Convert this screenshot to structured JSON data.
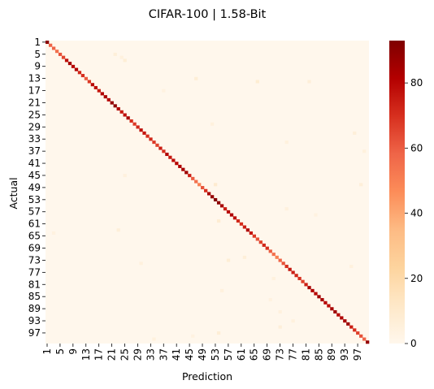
{
  "chart_data": {
    "type": "heatmap",
    "title": "CIFAR-100 | 1.58-Bit",
    "xlabel": "Prediction",
    "ylabel": "Actual",
    "n_classes": 100,
    "x_tick_labels": [
      "1",
      "5",
      "9",
      "13",
      "17",
      "21",
      "25",
      "29",
      "33",
      "37",
      "41",
      "45",
      "49",
      "53",
      "57",
      "61",
      "65",
      "69",
      "73",
      "77",
      "81",
      "85",
      "89",
      "93",
      "97"
    ],
    "y_tick_labels": [
      "1",
      "5",
      "9",
      "13",
      "17",
      "21",
      "25",
      "29",
      "33",
      "37",
      "41",
      "45",
      "49",
      "53",
      "57",
      "61",
      "65",
      "69",
      "73",
      "77",
      "81",
      "85",
      "89",
      "93",
      "97"
    ],
    "diagonal_values": [
      90,
      58,
      58,
      55,
      62,
      65,
      78,
      85,
      80,
      82,
      72,
      70,
      60,
      68,
      80,
      78,
      75,
      82,
      84,
      80,
      88,
      90,
      82,
      75,
      78,
      84,
      70,
      68,
      72,
      78,
      76,
      70,
      72,
      68,
      66,
      74,
      70,
      82,
      75,
      78,
      80,
      82,
      84,
      86,
      74,
      60,
      55,
      50,
      62,
      70,
      84,
      88,
      92,
      90,
      84,
      74,
      80,
      82,
      78,
      72,
      70,
      74,
      82,
      76,
      68,
      62,
      66,
      72,
      70,
      60,
      55,
      50,
      58,
      62,
      70,
      76,
      74,
      72,
      70,
      66,
      74,
      84,
      82,
      80,
      86,
      84,
      80,
      78,
      84,
      86,
      80,
      82,
      84,
      86,
      74,
      70,
      66,
      62,
      58,
      88
    ],
    "off_diagonal_values": [
      {
        "actual": 5,
        "prediction": 22,
        "value": 6
      },
      {
        "actual": 6,
        "prediction": 24,
        "value": 5
      },
      {
        "actual": 7,
        "prediction": 25,
        "value": 7
      },
      {
        "actual": 13,
        "prediction": 47,
        "value": 7
      },
      {
        "actual": 14,
        "prediction": 66,
        "value": 8
      },
      {
        "actual": 14,
        "prediction": 82,
        "value": 6
      },
      {
        "actual": 17,
        "prediction": 37,
        "value": 4
      },
      {
        "actual": 28,
        "prediction": 52,
        "value": 5
      },
      {
        "actual": 31,
        "prediction": 96,
        "value": 6
      },
      {
        "actual": 34,
        "prediction": 75,
        "value": 5
      },
      {
        "actual": 37,
        "prediction": 99,
        "value": 5
      },
      {
        "actual": 45,
        "prediction": 25,
        "value": 5
      },
      {
        "actual": 48,
        "prediction": 53,
        "value": 9
      },
      {
        "actual": 48,
        "prediction": 98,
        "value": 6
      },
      {
        "actual": 56,
        "prediction": 75,
        "value": 5
      },
      {
        "actual": 58,
        "prediction": 84,
        "value": 4
      },
      {
        "actual": 60,
        "prediction": 54,
        "value": 8
      },
      {
        "actual": 63,
        "prediction": 23,
        "value": 6
      },
      {
        "actual": 64,
        "prediction": 3,
        "value": 4
      },
      {
        "actual": 72,
        "prediction": 62,
        "value": 6
      },
      {
        "actual": 73,
        "prediction": 57,
        "value": 7
      },
      {
        "actual": 74,
        "prediction": 30,
        "value": 5
      },
      {
        "actual": 75,
        "prediction": 95,
        "value": 5
      },
      {
        "actual": 79,
        "prediction": 71,
        "value": 5
      },
      {
        "actual": 83,
        "prediction": 55,
        "value": 5
      },
      {
        "actual": 86,
        "prediction": 70,
        "value": 4
      },
      {
        "actual": 90,
        "prediction": 73,
        "value": 5
      },
      {
        "actual": 93,
        "prediction": 77,
        "value": 5
      },
      {
        "actual": 95,
        "prediction": 73,
        "value": 6
      },
      {
        "actual": 97,
        "prediction": 54,
        "value": 7
      },
      {
        "actual": 98,
        "prediction": 46,
        "value": 4
      },
      {
        "actual": 99,
        "prediction": 34,
        "value": 5
      }
    ],
    "color_scale": {
      "name": "OrRd",
      "min": 0,
      "max": 93,
      "ticks": [
        0,
        20,
        40,
        60,
        80
      ],
      "stops": [
        "#fff7ec",
        "#fee8c8",
        "#fdd49e",
        "#fdbb84",
        "#fc8d59",
        "#ef6548",
        "#d7301f",
        "#b30000",
        "#7f0000"
      ]
    }
  }
}
